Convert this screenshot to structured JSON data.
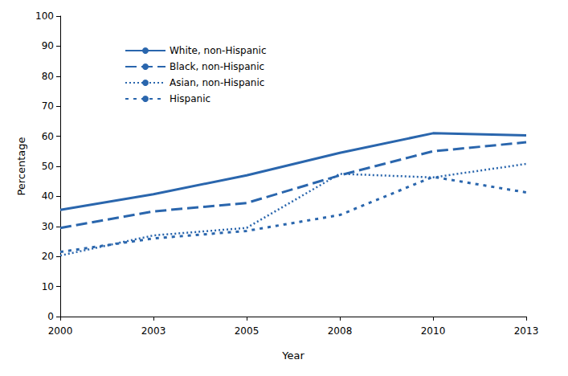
{
  "chart_data": {
    "type": "line",
    "x_label": "Year",
    "y_label": "Percentage",
    "categories": [
      "2000",
      "2003",
      "2005",
      "2008",
      "2010",
      "2013"
    ],
    "series": [
      {
        "name": "White, non-Hispanic",
        "color": "#2a66ad",
        "line_style": "solid",
        "values": [
          35.5,
          40.7,
          47,
          54.5,
          61,
          60.3
        ]
      },
      {
        "name": "Black, non-Hispanic",
        "color": "#2a66ad",
        "line_style": "long_dash",
        "values": [
          29.5,
          35,
          37.8,
          47,
          55,
          58
        ]
      },
      {
        "name": "Asian, non-Hispanic",
        "color": "#2a66ad",
        "line_style": "dotted",
        "values": [
          20.3,
          27,
          29.5,
          47.5,
          46.3,
          50.8
        ]
      },
      {
        "name": "Hispanic",
        "color": "#2a66ad",
        "line_style": "short_dash",
        "values": [
          21.5,
          26,
          28.5,
          33.8,
          46.5,
          41.3
        ]
      }
    ],
    "ylim": [
      0,
      100
    ],
    "yticks": [
      0,
      10,
      20,
      30,
      40,
      50,
      60,
      70,
      80,
      90,
      100
    ],
    "grid": false,
    "legend": "upper left",
    "marker": "none"
  }
}
